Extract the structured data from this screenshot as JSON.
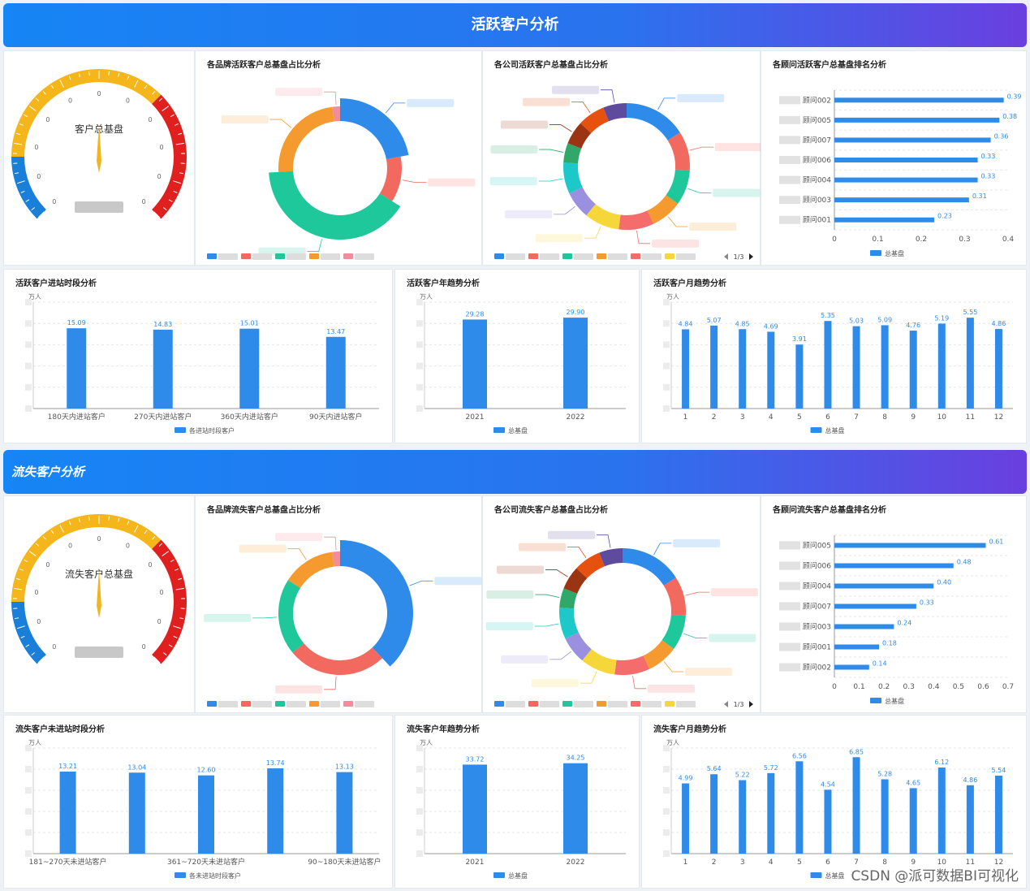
{
  "colors": {
    "bar": "#2f8bea",
    "gauge_blue": "#1a7fd8",
    "gauge_yellow": "#f4b61b",
    "gauge_red": "#e0201f",
    "needle": "#f3b51d"
  },
  "active": {
    "header": "活跃客户分析",
    "gauge_label": "客户总基盘",
    "gauge_ticks": [
      "0",
      "0",
      "0",
      "0",
      "0",
      "0",
      "0",
      "0",
      "0",
      "0",
      "0"
    ],
    "brand_title": "各品牌活跃客户总基盘占比分析",
    "company_title": "各公司活跃客户总基盘占比分析",
    "company_pager": "1/3",
    "consultant_chart": {
      "title": "各顾问活跃客户总基盘排名分析",
      "type": "bar",
      "categories": [
        "顾问002",
        "顾问005",
        "顾问007",
        "顾问006",
        "顾问004",
        "顾问003",
        "顾问001"
      ],
      "values": [
        0.39,
        0.38,
        0.36,
        0.33,
        0.33,
        0.31,
        0.23
      ],
      "value_labels": [
        "0.39",
        "0.38",
        "0.36",
        "0.33",
        "0.33",
        "0.31",
        "0.23"
      ],
      "xlim": [
        0,
        0.4
      ],
      "ticks": [
        "0",
        "0.1",
        "0.2",
        "0.3",
        "0.4"
      ],
      "legend": "总基盘"
    },
    "period_chart": {
      "title": "活跃客户进站时段分析",
      "type": "bar",
      "unit": "万人",
      "categories": [
        "180天内进站客户",
        "270天内进站客户",
        "360天内进站客户",
        "90天内进站客户"
      ],
      "values": [
        15.09,
        14.83,
        15.01,
        13.47
      ],
      "value_labels": [
        "15.09",
        "14.83",
        "15.01",
        "13.47"
      ],
      "ylim": [
        0,
        20
      ],
      "legend": "各进站时段客户"
    },
    "year_chart": {
      "title": "活跃客户年趋势分析",
      "type": "bar",
      "unit": "万人",
      "categories": [
        "2021",
        "2022"
      ],
      "values": [
        29.28,
        29.9
      ],
      "value_labels": [
        "29.28",
        "29.90"
      ],
      "ylim": [
        0,
        35
      ],
      "legend": "总基盘"
    },
    "month_chart": {
      "title": "活跃客户月趋势分析",
      "type": "bar",
      "unit": "万人",
      "categories": [
        "1",
        "2",
        "3",
        "4",
        "5",
        "6",
        "7",
        "8",
        "9",
        "10",
        "11",
        "12"
      ],
      "values": [
        4.84,
        5.07,
        4.85,
        4.69,
        3.91,
        5.35,
        5.03,
        5.09,
        4.76,
        5.19,
        5.55,
        4.86
      ],
      "value_labels": [
        "4.84",
        "5.07",
        "4.85",
        "4.69",
        "3.91",
        "5.35",
        "5.03",
        "5.09",
        "4.76",
        "5.19",
        "5.55",
        "4.86"
      ],
      "ylim": [
        0,
        6.5
      ],
      "legend": "总基盘"
    }
  },
  "lost": {
    "header": "流失客户分析",
    "gauge_label": "流失客户总基盘",
    "gauge_ticks": [
      "0",
      "0",
      "0",
      "0",
      "0",
      "0",
      "0",
      "0",
      "0",
      "0",
      "0"
    ],
    "brand_title": "各品牌流失客户总基盘占比分析",
    "company_title": "各公司流失客户总基盘占比分析",
    "company_pager": "1/3",
    "consultant_chart": {
      "title": "各顾问流失客户总基盘排名分析",
      "type": "bar",
      "categories": [
        "顾问005",
        "顾问006",
        "顾问004",
        "顾问007",
        "顾问003",
        "顾问001",
        "顾问002"
      ],
      "values": [
        0.61,
        0.48,
        0.4,
        0.33,
        0.24,
        0.18,
        0.14
      ],
      "value_labels": [
        "0.61",
        "0.48",
        "0.40",
        "0.33",
        "0.24",
        "0.18",
        "0.14"
      ],
      "xlim": [
        0,
        0.7
      ],
      "ticks": [
        "0",
        "0.1",
        "0.2",
        "0.3",
        "0.4",
        "0.5",
        "0.6",
        "0.7"
      ],
      "legend": "总基盘"
    },
    "period_chart": {
      "title": "流失客户未进站时段分析",
      "type": "bar",
      "unit": "万人",
      "categories": [
        "181~270天未进站客户",
        "",
        "361~720天未进站客户",
        "",
        "90~180天未进站客户"
      ],
      "values": [
        13.21,
        13.04,
        12.6,
        13.74,
        13.13
      ],
      "value_labels": [
        "13.21",
        "13.04",
        "12.60",
        "13.74",
        "13.13"
      ],
      "ylim": [
        0,
        17
      ],
      "legend": "各未进站时段客户"
    },
    "year_chart": {
      "title": "流失客户年趋势分析",
      "type": "bar",
      "unit": "万人",
      "categories": [
        "2021",
        "2022"
      ],
      "values": [
        33.72,
        34.25
      ],
      "value_labels": [
        "33.72",
        "34.25"
      ],
      "ylim": [
        0,
        40
      ],
      "legend": "总基盘"
    },
    "month_chart": {
      "title": "流失客户月趋势分析",
      "type": "bar",
      "unit": "万人",
      "categories": [
        "1",
        "2",
        "3",
        "4",
        "5",
        "6",
        "7",
        "8",
        "9",
        "10",
        "11",
        "12"
      ],
      "values": [
        4.99,
        5.64,
        5.22,
        5.72,
        6.56,
        4.54,
        6.85,
        5.28,
        4.65,
        6.12,
        4.86,
        5.54
      ],
      "value_labels": [
        "4.99",
        "5.64",
        "5.22",
        "5.72",
        "6.56",
        "4.54",
        "6.85",
        "5.28",
        "4.65",
        "6.12",
        "4.86",
        "5.54"
      ],
      "ylim": [
        0,
        7.5
      ],
      "legend": "总基盘"
    }
  },
  "watermark": "CSDN @派可数据BI可视化"
}
